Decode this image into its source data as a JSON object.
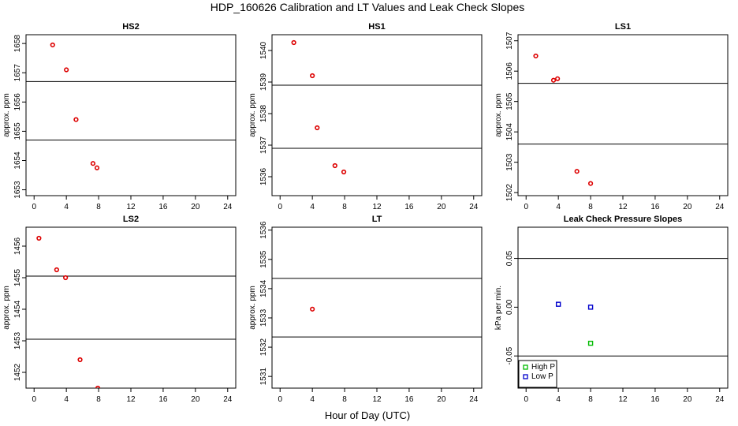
{
  "title": "HDP_160626  Calibration and LT Values and Leak Check Slopes",
  "xlabel": "Hour of Day (UTC)",
  "chart_data": [
    {
      "type": "scatter",
      "title": "HS2",
      "ylabel": "approx. ppm",
      "xlim": [
        -1,
        25
      ],
      "ylim": [
        1652.8,
        1658.3
      ],
      "xticks": [
        0,
        4,
        8,
        12,
        16,
        20,
        24
      ],
      "yticks": [
        1653,
        1654,
        1655,
        1656,
        1657,
        1658
      ],
      "hlines": [
        1656.7,
        1654.7
      ],
      "series": [
        {
          "color": "#dd0000",
          "points": [
            [
              2.3,
              1657.95
            ],
            [
              4.0,
              1657.1
            ],
            [
              5.2,
              1655.4
            ],
            [
              7.3,
              1653.9
            ],
            [
              7.8,
              1653.75
            ]
          ]
        }
      ]
    },
    {
      "type": "scatter",
      "title": "HS1",
      "ylabel": "approx. ppm",
      "xlim": [
        -1,
        25
      ],
      "ylim": [
        1535.4,
        1540.5
      ],
      "xticks": [
        0,
        4,
        8,
        12,
        16,
        20,
        24
      ],
      "yticks": [
        1536,
        1537,
        1538,
        1539,
        1540
      ],
      "hlines": [
        1538.9,
        1536.9
      ],
      "series": [
        {
          "color": "#dd0000",
          "points": [
            [
              1.7,
              1540.25
            ],
            [
              4.0,
              1539.2
            ],
            [
              4.6,
              1537.55
            ],
            [
              6.8,
              1536.35
            ],
            [
              7.9,
              1536.15
            ]
          ]
        }
      ]
    },
    {
      "type": "scatter",
      "title": "LS1",
      "ylabel": "approx. ppm",
      "xlim": [
        -1,
        25
      ],
      "ylim": [
        1501.9,
        1507.2
      ],
      "xticks": [
        0,
        4,
        8,
        12,
        16,
        20,
        24
      ],
      "yticks": [
        1502,
        1503,
        1504,
        1505,
        1506,
        1507
      ],
      "hlines": [
        1505.6,
        1503.6
      ],
      "series": [
        {
          "color": "#dd0000",
          "points": [
            [
              1.2,
              1506.5
            ],
            [
              3.4,
              1505.7
            ],
            [
              3.9,
              1505.75
            ],
            [
              6.3,
              1502.7
            ],
            [
              8.0,
              1502.3
            ]
          ]
        }
      ]
    },
    {
      "type": "scatter",
      "title": "LS2",
      "ylabel": "approx. ppm",
      "xlim": [
        -1,
        25
      ],
      "ylim": [
        1451.5,
        1456.6
      ],
      "xticks": [
        0,
        4,
        8,
        12,
        16,
        20,
        24
      ],
      "yticks": [
        1452,
        1453,
        1454,
        1455,
        1456
      ],
      "hlines": [
        1455.05,
        1453.05
      ],
      "series": [
        {
          "color": "#dd0000",
          "points": [
            [
              0.6,
              1456.25
            ],
            [
              2.8,
              1455.25
            ],
            [
              3.9,
              1455.0
            ],
            [
              5.7,
              1452.4
            ],
            [
              7.9,
              1451.5
            ]
          ]
        }
      ]
    },
    {
      "type": "scatter",
      "title": "LT",
      "ylabel": "approx. ppm",
      "xlim": [
        -1,
        25
      ],
      "ylim": [
        1530.6,
        1536.1
      ],
      "xticks": [
        0,
        4,
        8,
        12,
        16,
        20,
        24
      ],
      "yticks": [
        1531,
        1532,
        1533,
        1534,
        1535,
        1536
      ],
      "hlines": [
        1534.35,
        1532.35
      ],
      "series": [
        {
          "color": "#dd0000",
          "points": [
            [
              4.0,
              1533.3
            ]
          ]
        }
      ]
    },
    {
      "type": "scatter",
      "title": "Leak Check Pressure Slopes",
      "ylabel": "kPa per min.",
      "xlim": [
        -1,
        25
      ],
      "ylim": [
        -0.083,
        0.082
      ],
      "xticks": [
        0,
        4,
        8,
        12,
        16,
        20,
        24
      ],
      "yticks": [
        -0.05,
        0.0,
        0.05
      ],
      "ytick_labels": [
        "-0.05",
        "0.00",
        "0.05"
      ],
      "hlines": [
        0.05,
        -0.05
      ],
      "series": [
        {
          "name": "High P",
          "color": "#00bb00",
          "points": [
            [
              8.0,
              -0.037
            ]
          ]
        },
        {
          "name": "Low P",
          "color": "#0000cc",
          "points": [
            [
              4.0,
              0.003
            ],
            [
              8.0,
              0.0
            ]
          ]
        }
      ],
      "legend": "bottom-left"
    }
  ]
}
